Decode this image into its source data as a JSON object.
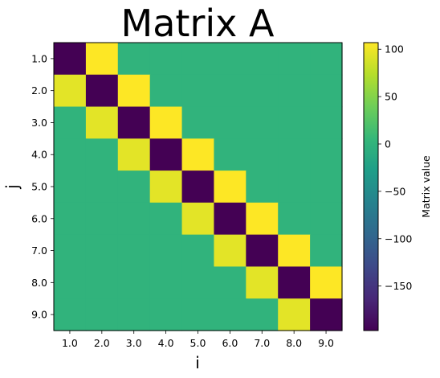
{
  "chart_data": {
    "type": "heatmap",
    "title": "Matrix A",
    "xlabel": "i",
    "ylabel": "j",
    "x_ticks": [
      "1.0",
      "2.0",
      "3.0",
      "4.0",
      "5.0",
      "6.0",
      "7.0",
      "8.0",
      "9.0"
    ],
    "y_ticks": [
      "1.0",
      "2.0",
      "3.0",
      "4.0",
      "5.0",
      "6.0",
      "7.0",
      "8.0",
      "9.0"
    ],
    "values": [
      [
        -197,
        107,
        0,
        0,
        0,
        0,
        0,
        0,
        0
      ],
      [
        95,
        -197,
        107,
        0,
        0,
        0,
        0,
        0,
        0
      ],
      [
        0,
        95,
        -197,
        107,
        0,
        0,
        0,
        0,
        0
      ],
      [
        0,
        0,
        95,
        -197,
        107,
        0,
        0,
        0,
        0
      ],
      [
        0,
        0,
        0,
        95,
        -197,
        107,
        0,
        0,
        0
      ],
      [
        0,
        0,
        0,
        0,
        95,
        -197,
        107,
        0,
        0
      ],
      [
        0,
        0,
        0,
        0,
        0,
        95,
        -197,
        107,
        0
      ],
      [
        0,
        0,
        0,
        0,
        0,
        0,
        95,
        -197,
        107
      ],
      [
        0,
        0,
        0,
        0,
        0,
        0,
        0,
        95,
        -197
      ]
    ],
    "colormap": "viridis",
    "colorbar": {
      "label": "Matrix value",
      "range": [
        -197,
        107
      ],
      "ticks": [
        100,
        50,
        0,
        -50,
        -100,
        -150
      ],
      "tick_labels": [
        "100",
        "50",
        "0",
        "−50",
        "−100",
        "−150"
      ]
    },
    "grid": false
  }
}
